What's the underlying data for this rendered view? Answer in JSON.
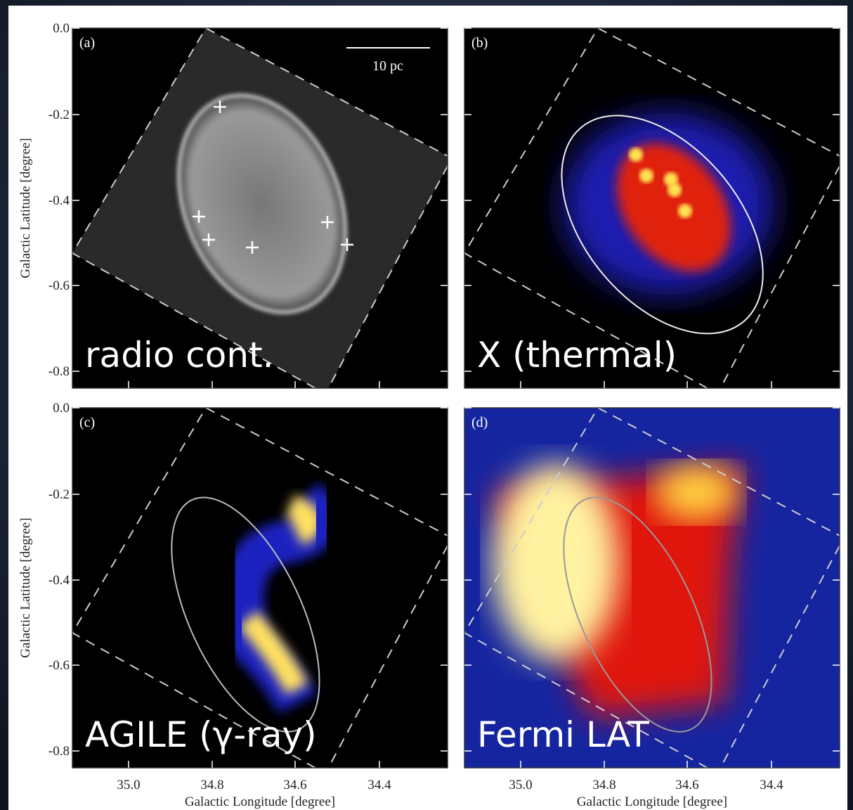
{
  "panels": [
    {
      "letter": "(a)",
      "caption": "radio cont."
    },
    {
      "letter": "(b)",
      "caption": "X (thermal)"
    },
    {
      "letter": "(c)",
      "caption": "AGILE (γ-ray)"
    },
    {
      "letter": "(d)",
      "caption": "Fermi LAT"
    }
  ],
  "scale_bar": "10 pc",
  "y_axis": {
    "label": "Galactic Latitude [degree]",
    "ticks": [
      "0.0",
      "-0.2",
      "-0.4",
      "-0.6",
      "-0.8"
    ]
  },
  "x_axis": {
    "label": "Galactic Longitude [degree]",
    "ticks": [
      "35.0",
      "34.8",
      "34.6",
      "34.4"
    ]
  }
}
